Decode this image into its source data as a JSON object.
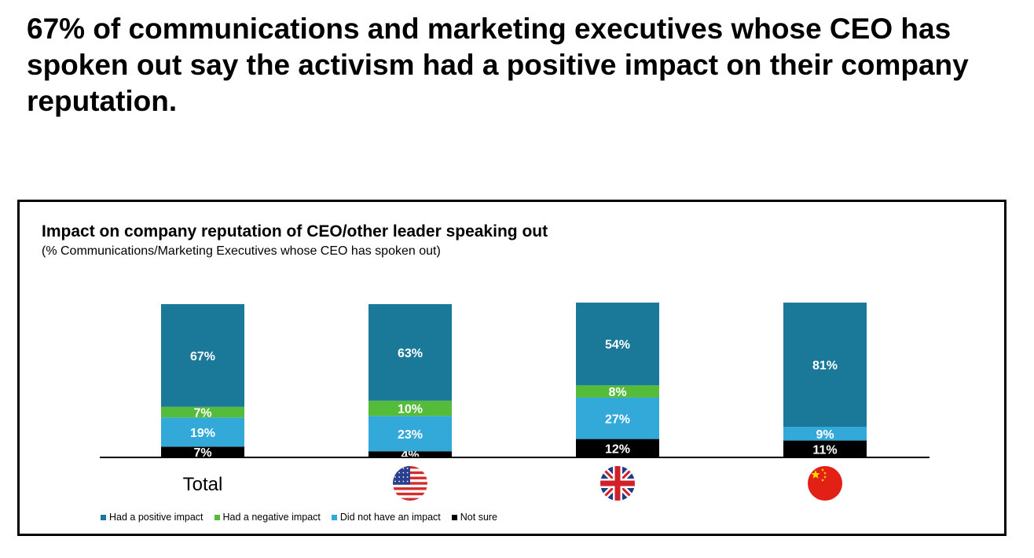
{
  "headline": "67% of communications and marketing executives whose CEO has spoken out say the activism had a positive impact on their company reputation.",
  "chart_data": {
    "type": "bar",
    "stacked": true,
    "title": "Impact on company reputation of CEO/other leader speaking out",
    "subtitle": "(% Communications/Marketing Executives whose CEO has spoken out)",
    "categories": [
      "Total",
      "United States",
      "United Kingdom",
      "China"
    ],
    "category_labels": [
      "Total",
      "",
      "",
      ""
    ],
    "category_icons": [
      "",
      "us-flag-icon",
      "uk-flag-icon",
      "china-flag-icon"
    ],
    "series": [
      {
        "name": "Had a positive impact",
        "color": "#1a7898",
        "values": [
          67,
          63,
          54,
          81
        ],
        "labels": [
          "67%",
          "63%",
          "54%",
          "81%"
        ]
      },
      {
        "name": "Had a negative impact",
        "color": "#55bb3a",
        "values": [
          7,
          10,
          8,
          0
        ],
        "labels": [
          "7%",
          "10%",
          "8%",
          ""
        ]
      },
      {
        "name": "Did not have an impact",
        "color": "#33a9d9",
        "values": [
          19,
          23,
          27,
          9
        ],
        "labels": [
          "19%",
          "23%",
          "27%",
          "9%"
        ]
      },
      {
        "name": "Not sure",
        "color": "#000000",
        "values": [
          7,
          4,
          12,
          11
        ],
        "labels": [
          "7%",
          "4%",
          "12%",
          "11%"
        ]
      }
    ],
    "ylim": [
      0,
      100
    ],
    "grid": false,
    "legend_position": "bottom"
  }
}
